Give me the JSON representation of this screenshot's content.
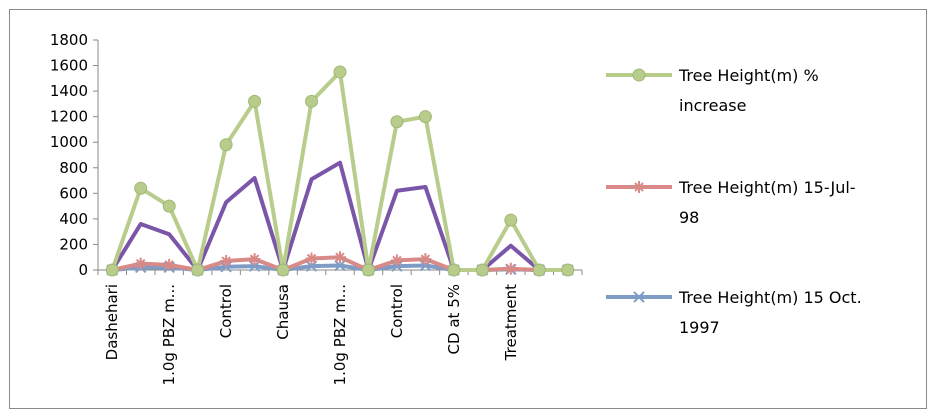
{
  "chart_data": {
    "type": "line",
    "categories": [
      "Dashehari",
      "",
      "1.0g PBZ m...",
      "",
      "Control",
      "",
      "Chausa",
      "",
      "1.0g PBZ m...",
      "",
      "Control",
      "",
      "CD at 5%",
      "",
      "Treatment",
      "",
      ""
    ],
    "x_tick_labels": [
      {
        "index": 0,
        "label": "Dashehari"
      },
      {
        "index": 2,
        "label": "1.0g PBZ m..."
      },
      {
        "index": 4,
        "label": "Control"
      },
      {
        "index": 6,
        "label": "Chausa"
      },
      {
        "index": 8,
        "label": "1.0g PBZ m..."
      },
      {
        "index": 10,
        "label": "Control"
      },
      {
        "index": 12,
        "label": "CD at 5%"
      },
      {
        "index": 14,
        "label": "Treatment"
      }
    ],
    "ylim": [
      0,
      1800
    ],
    "yticks": [
      "0",
      "200",
      "400",
      "600",
      "800",
      "1000",
      "1200",
      "1400",
      "1600",
      "1800"
    ],
    "grid": false,
    "legend": "right",
    "series": [
      {
        "name": "Tree Height(m) 15 Oct. 1997",
        "color": "#7f9cc7",
        "marker": "x",
        "values": [
          0,
          20,
          20,
          0,
          25,
          30,
          0,
          30,
          35,
          0,
          30,
          35,
          0,
          0,
          5,
          0,
          0
        ]
      },
      {
        "name": "Tree Height(m) 15-Jul-98",
        "color": "#d98a86",
        "marker": "star",
        "values": [
          0,
          50,
          40,
          0,
          70,
          85,
          0,
          90,
          100,
          0,
          75,
          85,
          0,
          0,
          10,
          0,
          0
        ]
      },
      {
        "name": "",
        "color": "#7b55a8",
        "marker": "none",
        "values": [
          0,
          360,
          280,
          0,
          530,
          720,
          0,
          710,
          840,
          0,
          620,
          650,
          0,
          0,
          190,
          0,
          0
        ]
      },
      {
        "name": "Tree Height(m) % increase",
        "color": "#b8cc8c",
        "marker": "circle",
        "values": [
          0,
          640,
          500,
          0,
          980,
          1320,
          0,
          1320,
          1550,
          0,
          1160,
          1200,
          0,
          0,
          390,
          0,
          0
        ]
      }
    ],
    "legend_entries": [
      {
        "lines": [
          "Tree Height(m) %",
          "increase"
        ],
        "series_index": 3
      },
      {
        "lines": [
          "Tree Height(m) 15-Jul-",
          "98"
        ],
        "series_index": 1
      },
      {
        "lines": [
          "Tree Height(m) 15 Oct.",
          "1997"
        ],
        "series_index": 0
      }
    ]
  }
}
